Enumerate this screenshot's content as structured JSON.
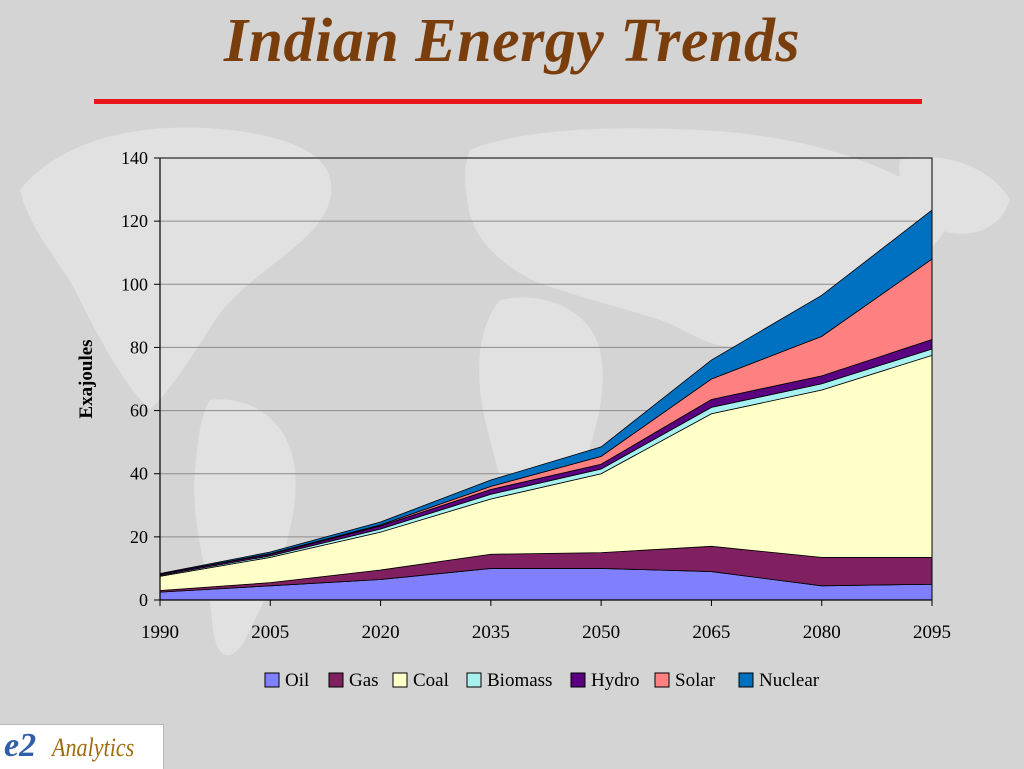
{
  "slide": {
    "title": "Indian Energy Trends",
    "accent_color": "#e8161a",
    "title_color": "#7a3e0c",
    "background": "#d4d4d4",
    "background_art": "world-map"
  },
  "logo": {
    "mark": "e2",
    "text": "Analytics"
  },
  "chart_data": {
    "type": "area",
    "stacked": true,
    "title": "",
    "xlabel": "",
    "ylabel": "Exajoules",
    "x": [
      "1990",
      "2005",
      "2020",
      "2035",
      "2050",
      "2065",
      "2080",
      "2095"
    ],
    "ylim": [
      0,
      140
    ],
    "yticks": [
      0,
      20,
      40,
      60,
      80,
      100,
      120,
      140
    ],
    "grid": true,
    "legend_position": "bottom",
    "series": [
      {
        "name": "Oil",
        "color": "#8080ff",
        "values": [
          2.5,
          4.5,
          6.5,
          10,
          10,
          9,
          4.5,
          5
        ]
      },
      {
        "name": "Gas",
        "color": "#802060",
        "values": [
          0.5,
          1,
          3,
          4.5,
          5,
          8,
          9,
          8.5
        ]
      },
      {
        "name": "Coal",
        "color": "#ffffc8",
        "values": [
          4.5,
          8,
          12,
          17.5,
          25,
          42,
          53,
          64
        ]
      },
      {
        "name": "Biomass",
        "color": "#a6f0f0",
        "values": [
          0.3,
          0.5,
          1,
          1.5,
          1.5,
          2,
          2,
          2
        ]
      },
      {
        "name": "Hydro",
        "color": "#5a0080",
        "values": [
          0.4,
          0.5,
          1,
          1.5,
          1.5,
          2.5,
          2.5,
          3
        ]
      },
      {
        "name": "Solar",
        "color": "#ff8080",
        "values": [
          0,
          0.2,
          0.3,
          1,
          2.5,
          6.5,
          12.5,
          25.5
        ]
      },
      {
        "name": "Nuclear",
        "color": "#0070c0",
        "values": [
          0.2,
          0.5,
          0.9,
          2,
          3,
          6,
          13,
          15.5
        ]
      }
    ]
  }
}
